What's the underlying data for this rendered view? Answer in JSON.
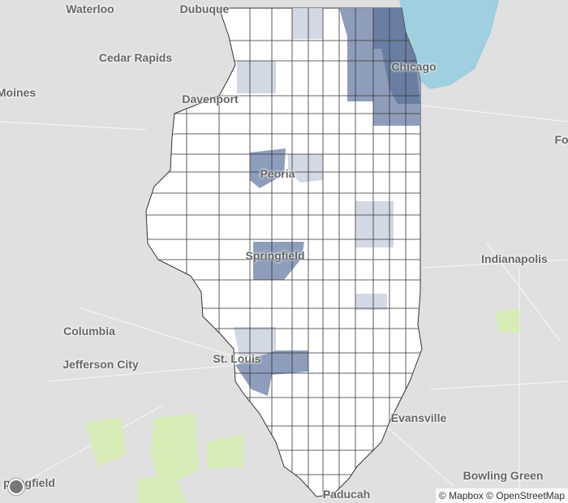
{
  "map": {
    "colors": {
      "background": "#e0e0e0",
      "water": "#9fcfe0",
      "park": "#d8ecb8",
      "county_fill": "#ffffff",
      "shade_light": "#d2d8e4",
      "shade_mid": "#8e9dbb",
      "shade_dark": "#6a7ea3",
      "border": "#333333"
    },
    "labels": [
      {
        "name": "waterloo",
        "text": "Waterloo"
      },
      {
        "name": "dubuque",
        "text": "Dubuque"
      },
      {
        "name": "cedar-rapids",
        "text": "Cedar Rapids"
      },
      {
        "name": "des-moines",
        "text": "Moines"
      },
      {
        "name": "davenport",
        "text": "Davenport"
      },
      {
        "name": "chicago",
        "text": "Chicago"
      },
      {
        "name": "fort-wayne",
        "text": "Fo"
      },
      {
        "name": "peoria",
        "text": "Peoria"
      },
      {
        "name": "springfield-il",
        "text": "Springfield"
      },
      {
        "name": "indianapolis",
        "text": "Indianapolis"
      },
      {
        "name": "columbia",
        "text": "Columbia"
      },
      {
        "name": "jefferson-city",
        "text": "Jefferson City"
      },
      {
        "name": "st-louis",
        "text": "St. Louis"
      },
      {
        "name": "evansville",
        "text": "Evansville"
      },
      {
        "name": "springfield-mo",
        "text": "pringfield"
      },
      {
        "name": "paducah",
        "text": "Paducah"
      },
      {
        "name": "bowling-green",
        "text": "Bowling Green"
      }
    ],
    "attribution": "© Mapbox © OpenStreetMap",
    "logo_icon": "mapbox-logo-icon"
  }
}
